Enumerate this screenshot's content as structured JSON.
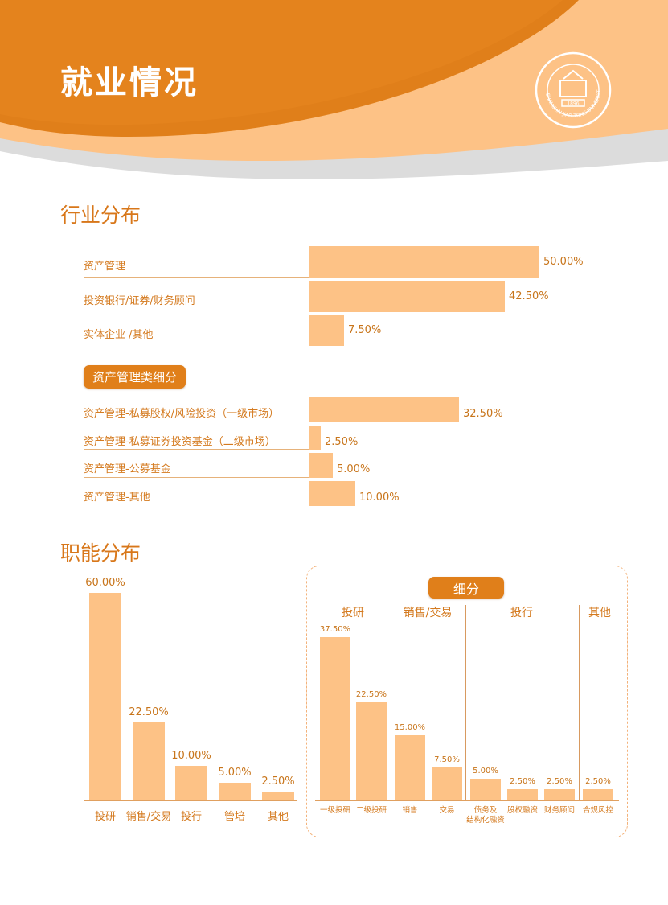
{
  "page_title": "就业情况",
  "industry": {
    "heading": "行业分布",
    "rows": [
      {
        "label": "资产管理",
        "value": 50.0,
        "value_label": "50.00%"
      },
      {
        "label": "投资银行/证券/财务顾问",
        "value": 42.5,
        "value_label": "42.50%"
      },
      {
        "label": "实体企业 /其他",
        "value": 7.5,
        "value_label": "7.50%"
      }
    ]
  },
  "asset_mgmt": {
    "badge": "资产管理类细分",
    "rows": [
      {
        "label": "资产管理-私募股权/风险投资（一级市场）",
        "value": 32.5,
        "value_label": "32.50%"
      },
      {
        "label": "资产管理-私募证券投资基金（二级市场）",
        "value": 2.5,
        "value_label": "2.50%"
      },
      {
        "label": "资产管理-公募基金",
        "value": 5.0,
        "value_label": "5.00%"
      },
      {
        "label": "资产管理-其他",
        "value": 10.0,
        "value_label": "10.00%"
      }
    ]
  },
  "function": {
    "heading": "职能分布",
    "bars": [
      {
        "label": "投研",
        "value": 60.0,
        "value_label": "60.00%"
      },
      {
        "label": "销售/交易",
        "value": 22.5,
        "value_label": "22.50%"
      },
      {
        "label": "投行",
        "value": 10.0,
        "value_label": "10.00%"
      },
      {
        "label": "管培",
        "value": 5.0,
        "value_label": "5.00%"
      },
      {
        "label": "其他",
        "value": 2.5,
        "value_label": "2.50%"
      }
    ]
  },
  "detail": {
    "badge": "细分",
    "groups": [
      "投研",
      "销售/交易",
      "投行",
      "其他"
    ],
    "bars": [
      {
        "label": "一级投研",
        "value": 37.5,
        "value_label": "37.50%"
      },
      {
        "label": "二级投研",
        "value": 22.5,
        "value_label": "22.50%"
      },
      {
        "label": "销售",
        "value": 15.0,
        "value_label": "15.00%"
      },
      {
        "label": "交易",
        "value": 7.5,
        "value_label": "7.50%"
      },
      {
        "label": "债务及\n结构化融资",
        "value": 5.0,
        "value_label": "5.00%"
      },
      {
        "label": "股权融资",
        "value": 2.5,
        "value_label": "2.50%"
      },
      {
        "label": "财务顾问",
        "value": 2.5,
        "value_label": "2.50%"
      },
      {
        "label": "合规风控",
        "value": 2.5,
        "value_label": "2.50%"
      }
    ]
  },
  "logo": {
    "text": "SHANGHAI JIAO TONG UNIVERSITY",
    "year": "1896"
  },
  "colors": {
    "orange": "#e07f1a",
    "bar": "#fdc286",
    "light_orange": "#fbbf7c",
    "gray": "#d9d9d9"
  }
}
